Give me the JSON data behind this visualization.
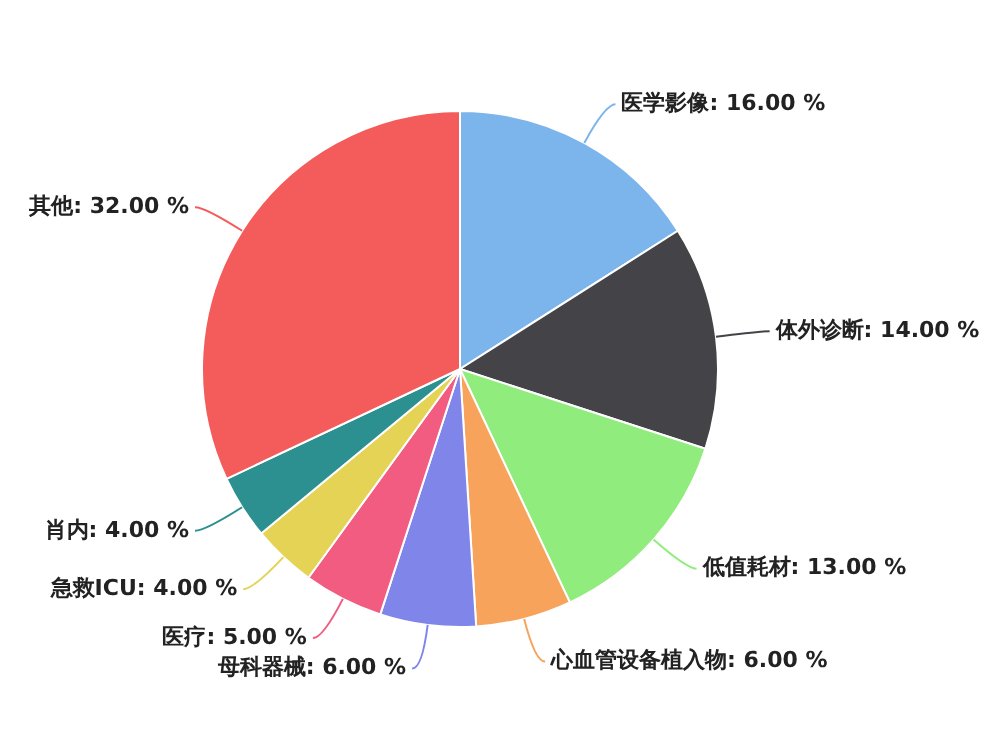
{
  "chart_data": {
    "type": "pie",
    "categories": [
      "医学影像",
      "体外诊断",
      "低值耗材",
      "心血管设备植入物",
      "母科器械",
      "医疗",
      "急救ICU",
      "肖内",
      "其他"
    ],
    "values": [
      16,
      14,
      13,
      6,
      6,
      5,
      4,
      4,
      32
    ],
    "colors": [
      "#7cb5ec",
      "#434348",
      "#90ed7d",
      "#f7a35c",
      "#8085e9",
      "#f15c80",
      "#e4d354",
      "#2b908f",
      "#f45b5b"
    ],
    "value_labels": [
      "16.00 %",
      "14.00 %",
      "13.00 %",
      "6.00 %",
      "6.00 %",
      "5.00 %",
      "4.00 %",
      "4.00 %",
      "32.00 %"
    ],
    "legend": false
  }
}
